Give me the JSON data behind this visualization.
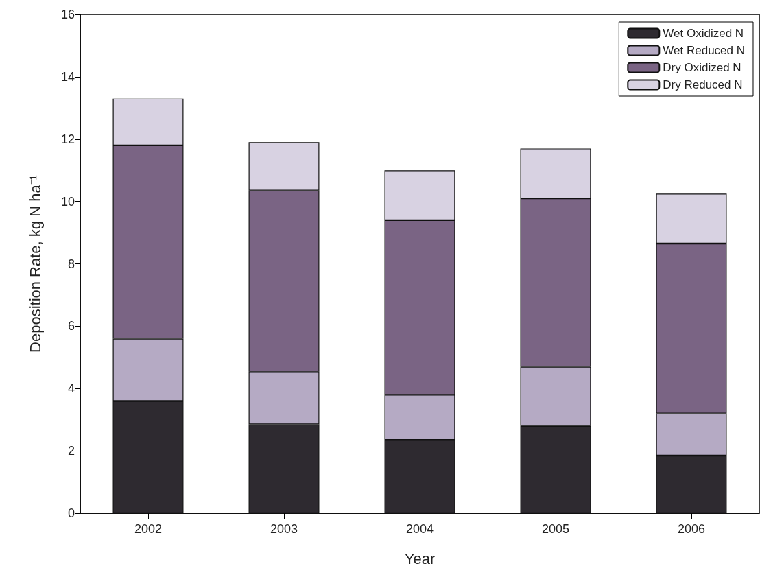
{
  "chart_data": {
    "type": "bar",
    "stacked": true,
    "xlabel": "Year",
    "ylabel": "Deposition Rate, kg N ha⁻¹",
    "categories": [
      "2002",
      "2003",
      "2004",
      "2005",
      "2006"
    ],
    "series": [
      {
        "name": "Wet Oxidized N",
        "color": "#2e2a30",
        "values": [
          3.6,
          2.85,
          2.35,
          2.8,
          1.85
        ]
      },
      {
        "name": "Wet Reduced N",
        "color": "#b5aac4",
        "values": [
          2.0,
          1.7,
          1.45,
          1.9,
          1.35
        ]
      },
      {
        "name": "Dry Oxidized N",
        "color": "#7a6484",
        "values": [
          6.2,
          5.8,
          5.6,
          5.4,
          5.45
        ]
      },
      {
        "name": "Dry Reduced N",
        "color": "#d8d2e2",
        "values": [
          1.5,
          1.55,
          1.6,
          1.6,
          1.6
        ]
      }
    ],
    "ylim": [
      0,
      16
    ],
    "yticks": [
      0,
      2,
      4,
      6,
      8,
      10,
      12,
      14,
      16
    ],
    "grid": false,
    "legend": "top right"
  }
}
